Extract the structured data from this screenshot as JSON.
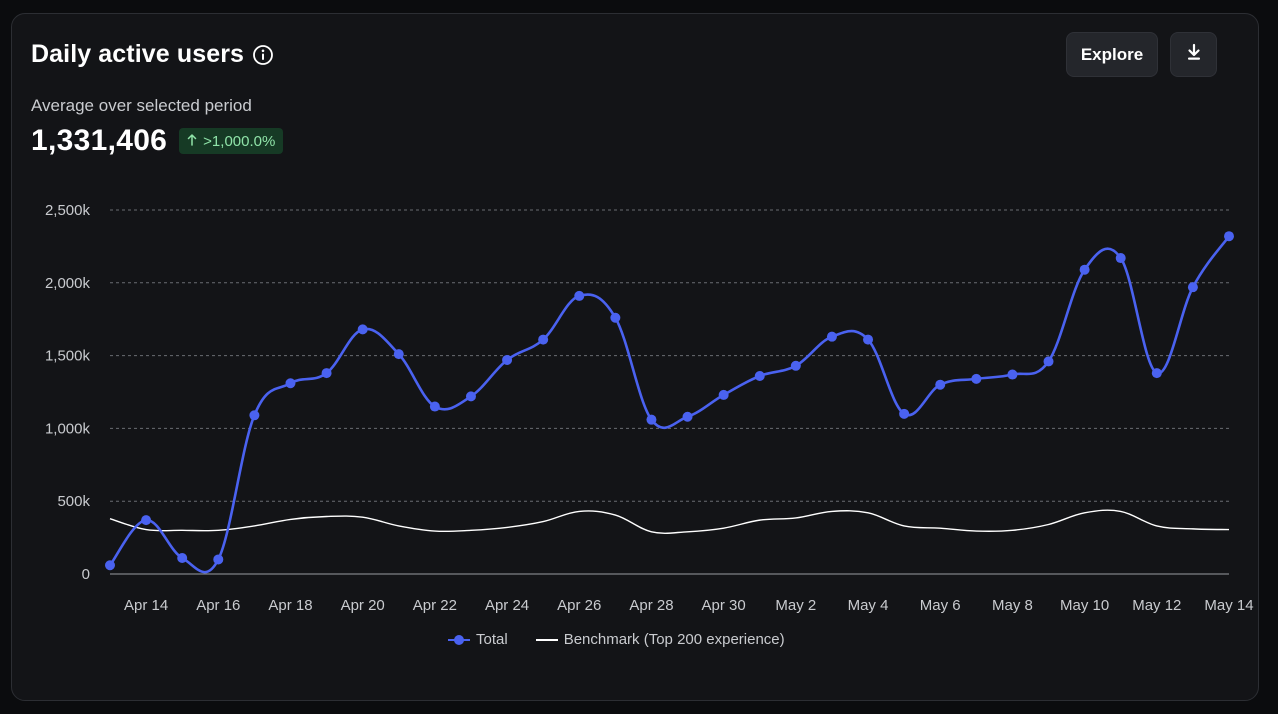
{
  "header": {
    "title": "Daily active users",
    "subtitle": "Average over selected period",
    "metric": "1,331,406",
    "change_badge": ">1,000.0%",
    "change_icon": "arrow-up-icon",
    "info_icon": "info-icon"
  },
  "actions": {
    "explore_label": "Explore",
    "download_icon": "download-icon"
  },
  "colors": {
    "total": "#4a62f0",
    "benchmark": "#ffffff",
    "badge_bg": "#163a25",
    "badge_fg": "#8fe3a8"
  },
  "legend": {
    "total_label": "Total",
    "benchmark_label": "Benchmark (Top 200 experience)"
  },
  "chart_data": {
    "type": "line",
    "x": [
      "Apr 13",
      "Apr 14",
      "Apr 15",
      "Apr 16",
      "Apr 17",
      "Apr 18",
      "Apr 19",
      "Apr 20",
      "Apr 21",
      "Apr 22",
      "Apr 23",
      "Apr 24",
      "Apr 25",
      "Apr 26",
      "Apr 27",
      "Apr 28",
      "Apr 29",
      "Apr 30",
      "May 1",
      "May 2",
      "May 3",
      "May 4",
      "May 5",
      "May 6",
      "May 7",
      "May 8",
      "May 9",
      "May 10",
      "May 11",
      "May 12",
      "May 13",
      "May 14"
    ],
    "x_tick_labels": [
      "Apr 14",
      "Apr 16",
      "Apr 18",
      "Apr 20",
      "Apr 22",
      "Apr 24",
      "Apr 26",
      "Apr 28",
      "Apr 30",
      "May 2",
      "May 4",
      "May 6",
      "May 8",
      "May 10",
      "May 12",
      "May 14"
    ],
    "y_ticks": [
      "0",
      "500k",
      "1,000k",
      "1,500k",
      "2,000k",
      "2,500k"
    ],
    "ylim": [
      0,
      2500000
    ],
    "grid": true,
    "legend_position": "bottom-center",
    "series": [
      {
        "name": "Total",
        "values": [
          60000,
          370000,
          110000,
          100000,
          1090000,
          1310000,
          1380000,
          1680000,
          1510000,
          1150000,
          1220000,
          1470000,
          1610000,
          1910000,
          1760000,
          1060000,
          1080000,
          1230000,
          1360000,
          1430000,
          1630000,
          1610000,
          1100000,
          1300000,
          1340000,
          1370000,
          1460000,
          2090000,
          2170000,
          1380000,
          1970000,
          2320000
        ]
      },
      {
        "name": "Benchmark (Top 200 experience)",
        "values": [
          380000,
          305000,
          300000,
          300000,
          330000,
          375000,
          395000,
          390000,
          330000,
          295000,
          300000,
          320000,
          360000,
          430000,
          405000,
          290000,
          290000,
          315000,
          370000,
          385000,
          430000,
          420000,
          330000,
          315000,
          295000,
          300000,
          340000,
          420000,
          430000,
          330000,
          310000,
          305000
        ]
      }
    ]
  }
}
